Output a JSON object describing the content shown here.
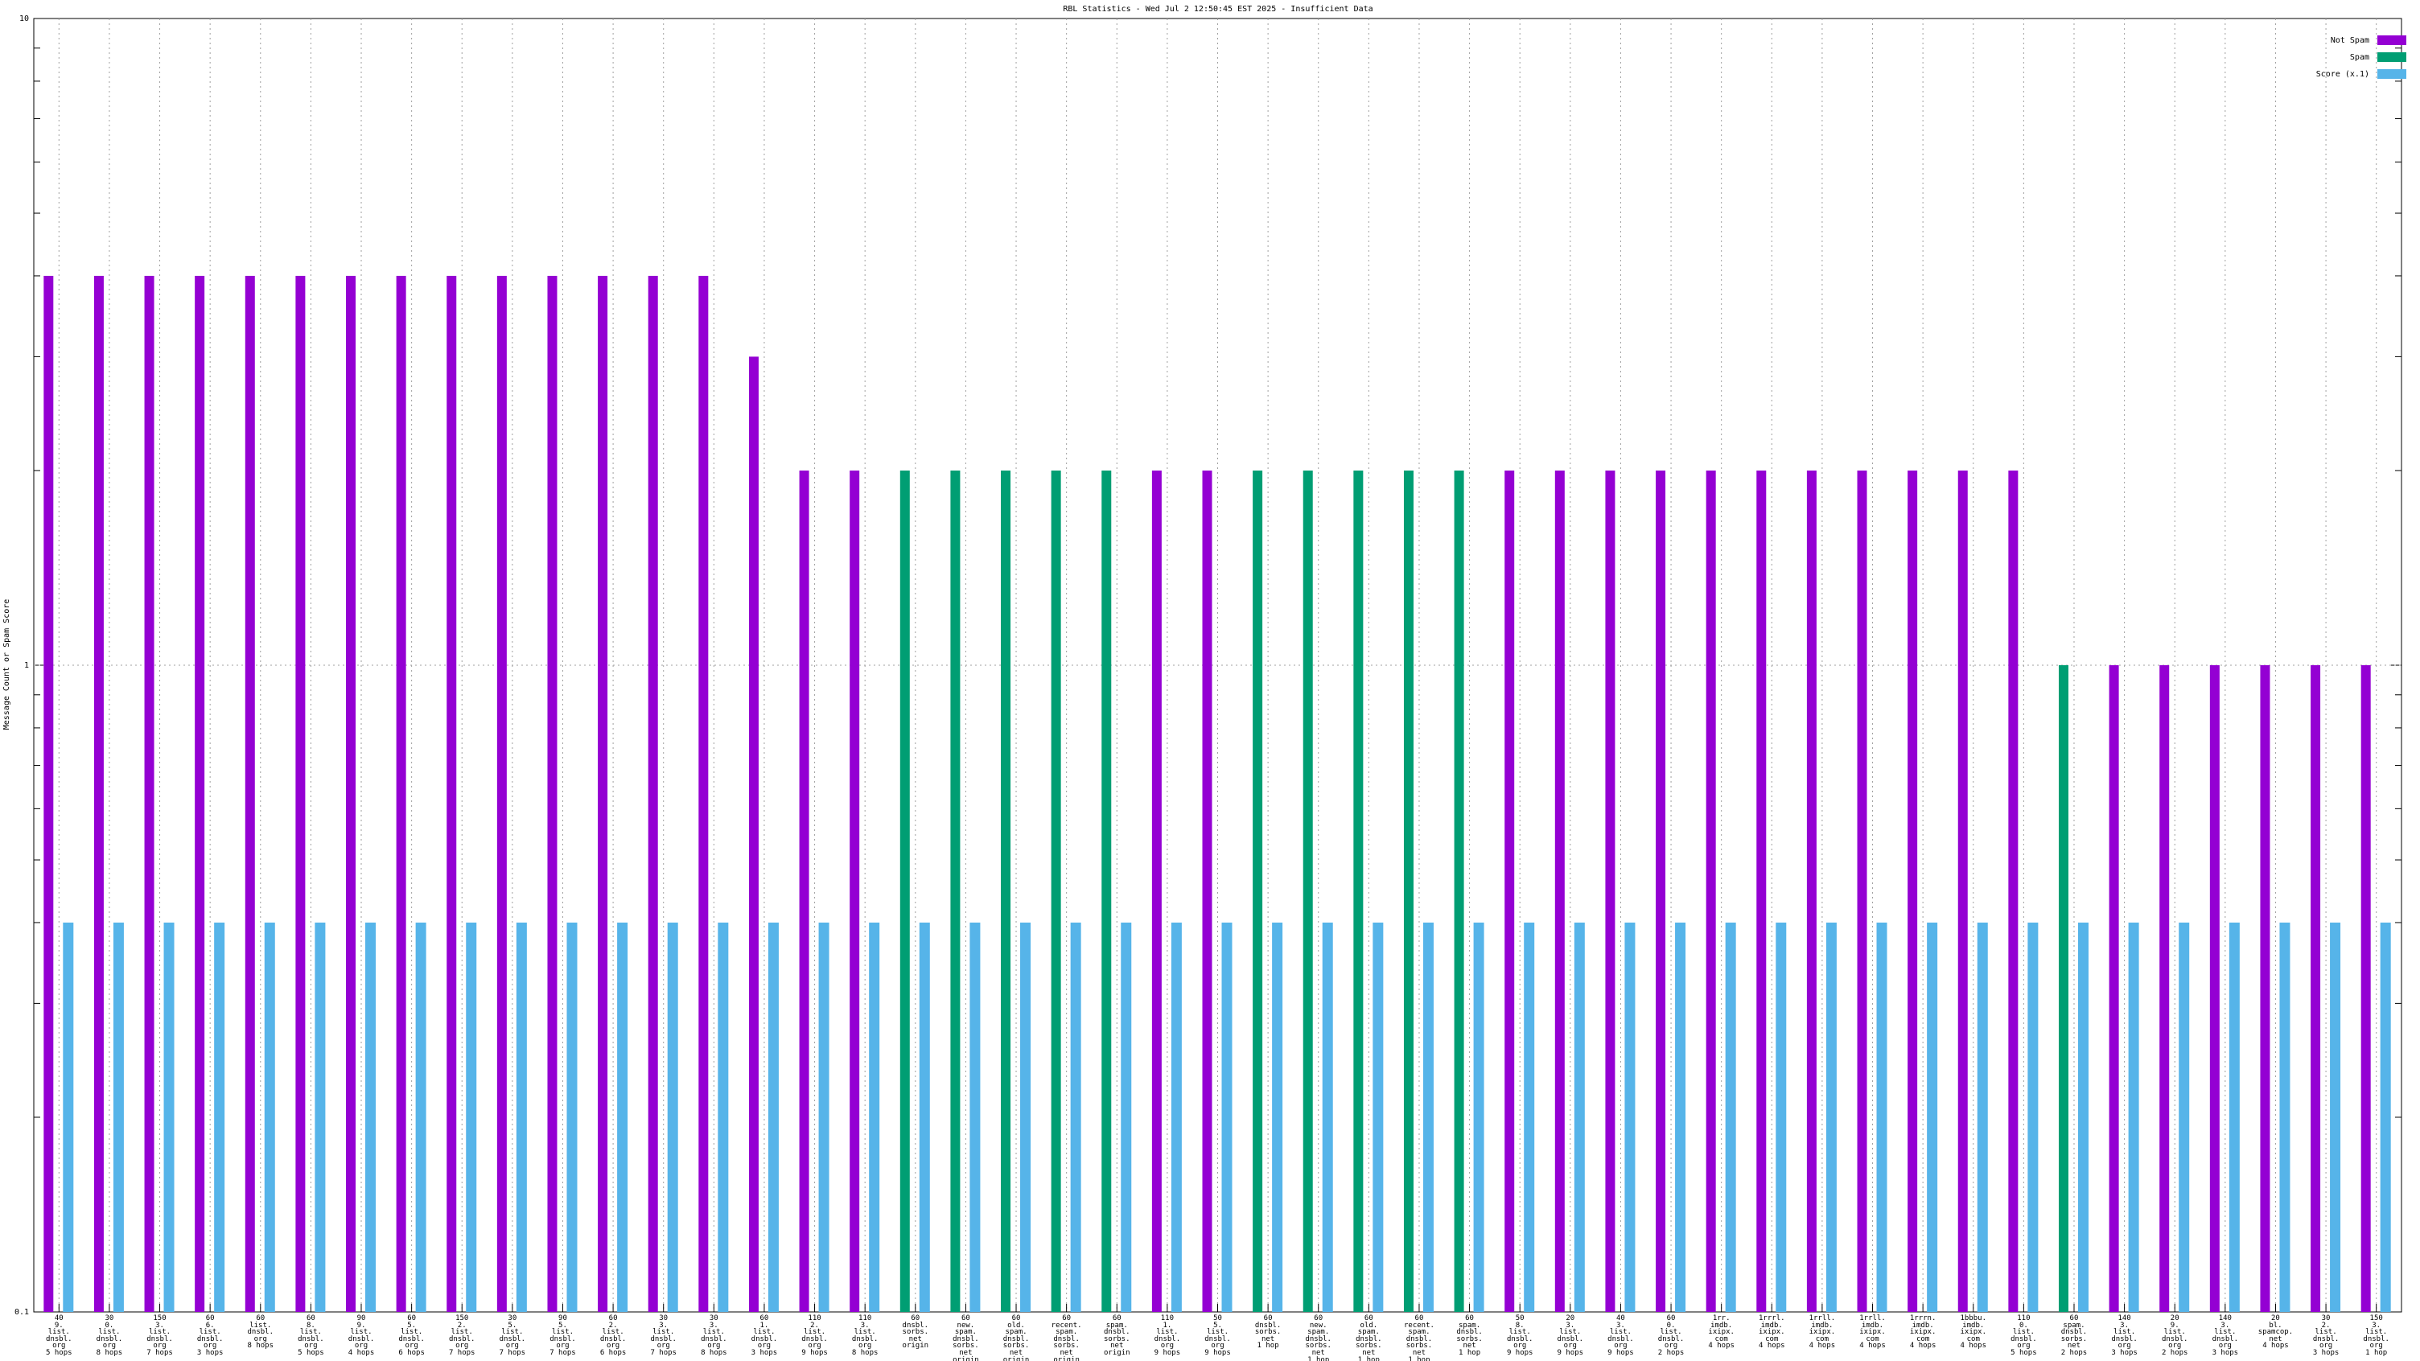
{
  "chart_data": {
    "type": "bar",
    "title": "RBL Statistics - Wed Jul  2 12:50:45 EST 2025 - Insufficient Data",
    "y_label": "Message Count or Spam Score",
    "log_scale": true,
    "grid": true,
    "legend": "top-right",
    "ylim": [
      0.1,
      10
    ],
    "yticks": [
      0.1,
      1,
      10
    ],
    "categories": [
      "40\n9.\nlist.\ndnsbl.\norg\n5 hops",
      "30\n0.\nlist.\ndnsbl.\norg\n8 hops",
      "150\n3.\nlist.\ndnsbl.\norg\n7 hops",
      "60\n6.\nlist.\ndnsbl.\norg\n3 hops",
      "60\nlist.\ndnsbl.\norg\n8 hops",
      "60\n8.\nlist.\ndnsbl.\norg\n5 hops",
      "90\n9.\nlist.\ndnsbl.\norg\n4 hops",
      "60\n5.\nlist.\ndnsbl.\norg\n6 hops",
      "150\n2.\nlist.\ndnsbl.\norg\n7 hops",
      "30\n5.\nlist.\ndnsbl.\norg\n7 hops",
      "90\n5.\nlist.\ndnsbl.\norg\n7 hops",
      "60\n2.\nlist.\ndnsbl.\norg\n6 hops",
      "30\n3.\nlist.\ndnsbl.\norg\n7 hops",
      "30\n3.\nlist.\ndnsbl.\norg\n8 hops",
      "60\n1.\nlist.\ndnsbl.\norg\n3 hops",
      "110\n2.\nlist.\ndnsbl.\norg\n9 hops",
      "110\n3.\nlist.\ndnsbl.\norg\n8 hops",
      "60\ndnsbl.\nsorbs.\nnet\norigin",
      "60\nnew.\nspam.\ndnsbl.\nsorbs.\nnet\norigin",
      "60\nold.\nspam.\ndnsbl.\nsorbs.\nnet\norigin",
      "60\nrecent.\nspam.\ndnsbl.\nsorbs.\nnet\norigin",
      "60\nspam.\ndnsbl.\nsorbs.\nnet\norigin",
      "110\n1.\nlist.\ndnsbl.\norg\n9 hops",
      "50\n5.\nlist.\ndnsbl.\norg\n9 hops",
      "60\ndnsbl.\nsorbs.\nnet\n1 hop",
      "60\nnew.\nspam.\ndnsbl.\nsorbs.\nnet\n1 hop",
      "60\nold.\nspam.\ndnsbl.\nsorbs.\nnet\n1 hop",
      "60\nrecent.\nspam.\ndnsbl.\nsorbs.\nnet\n1 hop",
      "60\nspam.\ndnsbl.\nsorbs.\nnet\n1 hop",
      "50\n8.\nlist.\ndnsbl.\norg\n9 hops",
      "20\n3.\nlist.\ndnsbl.\norg\n9 hops",
      "40\n3.\nlist.\ndnsbl.\norg\n9 hops",
      "60\n0.\nlist.\ndnsbl.\norg\n2 hops",
      "1rr.\nimdb.\nixipx.\ncom\n4 hops",
      "1rrrl.\nimdb.\nixipx.\ncom\n4 hops",
      "1rrll.\nimdb.\nixipx.\ncom\n4 hops",
      "1rrll.\nimdb.\nixipx.\ncom\n4 hops",
      "1rrrn.\nimdb.\nixipx.\ncom\n4 hops",
      "1bbbu.\nimdb.\nixipx.\ncom\n4 hops",
      "110\n0.\nlist.\ndnsbl.\norg\n5 hops",
      "60\nspam.\ndnsbl.\nsorbs.\nnet\n2 hops",
      "140\n3.\nlist.\ndnsbl.\norg\n3 hops",
      "20\n9.\nlist.\ndnsbl.\norg\n2 hops",
      "140\n3.\nlist.\ndnsbl.\norg\n3 hops",
      "20\nbl.\nspamcop.\nnet\n4 hops",
      "30\n2.\nlist.\ndnsbl.\norg\n3 hops",
      "150\n3.\nlist.\ndnsbl.\norg\n1 hop"
    ],
    "series": [
      {
        "name": "Not Spam",
        "color": "#9400d3",
        "values": [
          4,
          4,
          4,
          4,
          4,
          4,
          4,
          4,
          4,
          4,
          4,
          4,
          4,
          4,
          3,
          2,
          2,
          null,
          null,
          null,
          null,
          null,
          2,
          2,
          null,
          null,
          null,
          null,
          null,
          2,
          2,
          2,
          2,
          2,
          2,
          2,
          2,
          2,
          2,
          2,
          null,
          1,
          1,
          1,
          1,
          1,
          1
        ]
      },
      {
        "name": "Spam",
        "color": "#009e73",
        "values": [
          null,
          null,
          null,
          null,
          null,
          null,
          null,
          null,
          null,
          null,
          null,
          null,
          null,
          null,
          null,
          null,
          null,
          2,
          2,
          2,
          2,
          2,
          null,
          null,
          2,
          2,
          2,
          2,
          2,
          null,
          null,
          null,
          null,
          null,
          null,
          null,
          null,
          null,
          null,
          null,
          1,
          null,
          null,
          null,
          null,
          null,
          null
        ]
      },
      {
        "name": "Score (x.1)",
        "color": "#56b4e9",
        "values": [
          0.4,
          0.4,
          0.4,
          0.4,
          0.4,
          0.4,
          0.4,
          0.4,
          0.4,
          0.4,
          0.4,
          0.4,
          0.4,
          0.4,
          0.4,
          0.4,
          0.4,
          0.4,
          0.4,
          0.4,
          0.4,
          0.4,
          0.4,
          0.4,
          0.4,
          0.4,
          0.4,
          0.4,
          0.4,
          0.4,
          0.4,
          0.4,
          0.4,
          0.4,
          0.4,
          0.4,
          0.4,
          0.4,
          0.4,
          0.4,
          0.4,
          0.4,
          0.4,
          0.4,
          0.4,
          0.4,
          0.4
        ]
      }
    ]
  }
}
